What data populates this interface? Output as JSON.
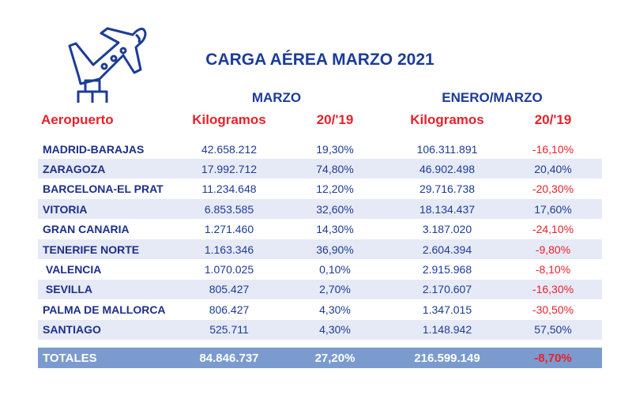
{
  "title": "CARGA AÉREA MARZO 2021",
  "group_headers": [
    "MARZO",
    "ENERO/MARZO"
  ],
  "columns": [
    "Aeropuerto",
    "Kilogramos",
    "20/'19",
    "Kilogramos",
    "20/'19"
  ],
  "rows": [
    [
      "MADRID-BARAJAS",
      "42.658.212",
      "19,30%",
      "106.311.891",
      "-16,10%"
    ],
    [
      "ZARAGOZA",
      "17.992.712",
      "74,80%",
      "46.902.498",
      "20,40%"
    ],
    [
      "BARCELONA-EL PRAT",
      "11.234.648",
      "12,20%",
      "29.716.738",
      "-20,30%"
    ],
    [
      "VITORIA",
      "6.853.585",
      "32,60%",
      "18.134.437",
      "17,60%"
    ],
    [
      "GRAN CANARIA",
      "1.271.460",
      "14,30%",
      "3.187.020",
      "-24,10%"
    ],
    [
      "TENERIFE NORTE",
      "1.163.346",
      "36,90%",
      "2.604.394",
      "-9,80%"
    ],
    [
      " VALENCIA",
      "1.070.025",
      "0,10%",
      "2.915.968",
      "-8,10%"
    ],
    [
      " SEVILLA",
      "805.427",
      "2,70%",
      "2.170.607",
      "-16,30%"
    ],
    [
      "PALMA DE MALLORCA",
      "806.427",
      "4,30%",
      "1.347.015",
      "-30,50%"
    ],
    [
      "SANTIAGO",
      "525.711",
      "4,30%",
      "1.148.942",
      "57,50%"
    ]
  ],
  "totals": [
    "TOTALES",
    "84.846.737",
    "27,20%",
    "216.599.149",
    "-8,70%"
  ],
  "colors": {
    "primary": "#1c3c96",
    "negative": "#e8212b",
    "total_bg": "#7b9bcf",
    "alt_row": "#e6eaf6"
  }
}
